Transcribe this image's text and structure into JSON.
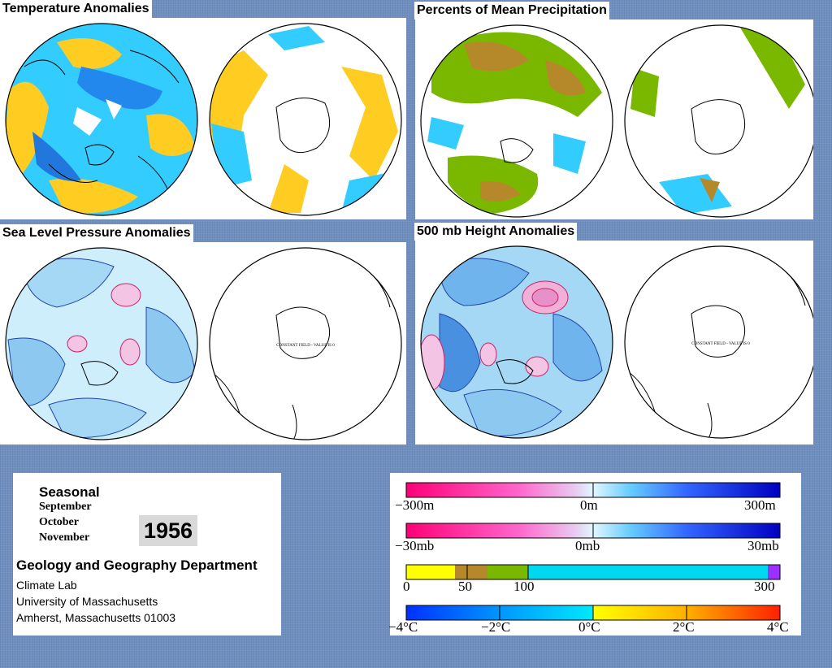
{
  "panels": {
    "temperature": {
      "title": "Temperature Anomalies"
    },
    "precipitation": {
      "title": "Percents of Mean Precipitation"
    },
    "slp": {
      "title": "Sea Level Pressure Anomalies",
      "constant_note": "CONSTANT FIELD - VALUE IS 0"
    },
    "height500": {
      "title": "500 mb Height Anomalies",
      "constant_note": "CONSTANT FIELD - VALUE IS 0"
    }
  },
  "info": {
    "season_title": "Seasonal",
    "months": [
      "September",
      "October",
      "November"
    ],
    "year": "1956",
    "department": "Geology and Geography Department",
    "address_lines": [
      "Climate Lab",
      "University of Massachusetts",
      "Amherst, Massachusetts 01003"
    ]
  },
  "legends": {
    "height": {
      "labels": [
        "−300m",
        "0m",
        "300m"
      ]
    },
    "pressure": {
      "labels": [
        "−30mb",
        "0mb",
        "30mb"
      ]
    },
    "precip": {
      "labels": [
        "0",
        "50",
        "100",
        "300"
      ]
    },
    "temp": {
      "labels": [
        "−4°C",
        "−2°C",
        "0°C",
        "2°C",
        "4°C"
      ]
    }
  },
  "colors": {
    "background": "#6f8fbf",
    "anomaly_negative": "#ff0077",
    "anomaly_neutral": "#e0f7ff",
    "anomaly_positive": "#0000c0",
    "precip_low": "#ffff00",
    "precip_mid": "#7ab800",
    "precip_high": "#00d8f0",
    "precip_max": "#9b30ff",
    "temp_cold": "#0030ff",
    "temp_neutral": "#00e8ff",
    "temp_warm": "#ff2000"
  }
}
